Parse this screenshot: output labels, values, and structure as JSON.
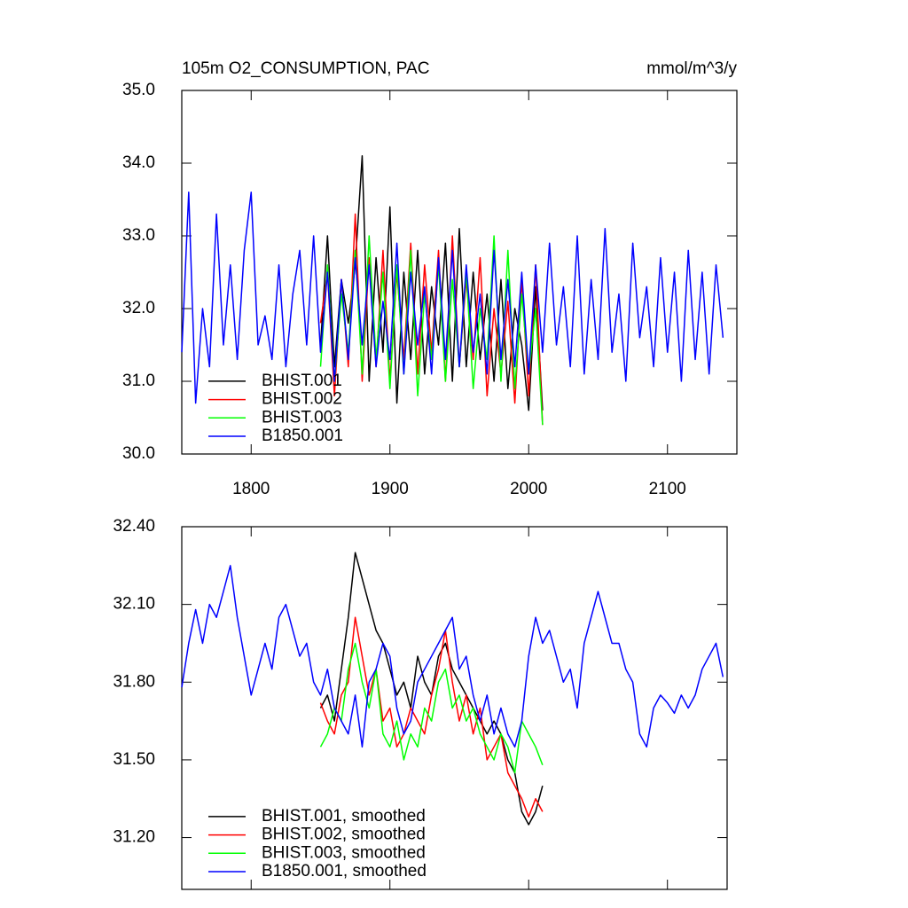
{
  "chart_data": [
    {
      "type": "line",
      "title": "105m O2_CONSUMPTION, PAC",
      "units": "mmol/m^3/y",
      "x": [
        1750,
        1755,
        1760,
        1765,
        1770,
        1775,
        1780,
        1785,
        1790,
        1795,
        1800,
        1805,
        1810,
        1815,
        1820,
        1825,
        1830,
        1835,
        1840,
        1845,
        1850,
        1855,
        1860,
        1865,
        1870,
        1875,
        1880,
        1885,
        1890,
        1895,
        1900,
        1905,
        1910,
        1915,
        1920,
        1925,
        1930,
        1935,
        1940,
        1945,
        1950,
        1955,
        1960,
        1965,
        1970,
        1975,
        1980,
        1985,
        1990,
        1995,
        2000,
        2005,
        2010,
        2015,
        2020,
        2025,
        2030,
        2035,
        2040,
        2045,
        2050,
        2055,
        2060,
        2065,
        2070,
        2075,
        2080,
        2085,
        2090,
        2095,
        2100,
        2105,
        2110,
        2115,
        2120,
        2125,
        2130,
        2135,
        2140
      ],
      "xlim": [
        1750,
        2150
      ],
      "xticks": [
        1800,
        1900,
        2000,
        2100
      ],
      "ylim": [
        30,
        35
      ],
      "yticks": [
        {
          "value": 30,
          "label": "30.0"
        },
        {
          "value": 31,
          "label": "31.0"
        },
        {
          "value": 32,
          "label": "32.0"
        },
        {
          "value": 33,
          "label": "33.0"
        },
        {
          "value": 34,
          "label": "34.0"
        },
        {
          "value": 35,
          "label": "35.0"
        }
      ],
      "legend": "lower left",
      "series": [
        {
          "name": "BHIST.001",
          "color": "#000000",
          "values": [
            null,
            null,
            null,
            null,
            null,
            null,
            null,
            null,
            null,
            null,
            null,
            null,
            null,
            null,
            null,
            null,
            null,
            null,
            null,
            null,
            31.5,
            33.0,
            31.2,
            32.4,
            31.8,
            32.6,
            34.1,
            31.0,
            32.7,
            31.4,
            33.4,
            30.7,
            32.5,
            31.3,
            32.8,
            31.1,
            32.3,
            31.5,
            32.9,
            31.0,
            33.1,
            31.2,
            32.5,
            31.3,
            32.2,
            31.0,
            32.4,
            30.9,
            32.0,
            31.5,
            30.6,
            32.3,
            30.6,
            null,
            null,
            null,
            null,
            null,
            null,
            null,
            null,
            null,
            null,
            null,
            null,
            null,
            null,
            null,
            null,
            null,
            null,
            null,
            null,
            null,
            null,
            null,
            null,
            null,
            null
          ]
        },
        {
          "name": "BHIST.002",
          "color": "#ff0000",
          "values": [
            null,
            null,
            null,
            null,
            null,
            null,
            null,
            null,
            null,
            null,
            null,
            null,
            null,
            null,
            null,
            null,
            null,
            null,
            null,
            null,
            31.8,
            32.5,
            30.8,
            32.4,
            31.2,
            33.3,
            31.0,
            32.7,
            31.2,
            32.8,
            31.0,
            32.5,
            31.3,
            32.9,
            31.1,
            32.6,
            31.4,
            32.8,
            31.0,
            33.0,
            31.2,
            32.4,
            31.3,
            32.7,
            30.8,
            32.0,
            31.1,
            32.1,
            30.7,
            32.4,
            30.8,
            32.6,
            30.4,
            null,
            null,
            null,
            null,
            null,
            null,
            null,
            null,
            null,
            null,
            null,
            null,
            null,
            null,
            null,
            null,
            null,
            null,
            null,
            null,
            null,
            null,
            null,
            null,
            null,
            null
          ]
        },
        {
          "name": "BHIST.003",
          "color": "#00ff00",
          "values": [
            null,
            null,
            null,
            null,
            null,
            null,
            null,
            null,
            null,
            null,
            null,
            null,
            null,
            null,
            null,
            null,
            null,
            null,
            null,
            null,
            31.2,
            32.6,
            31.0,
            32.2,
            31.4,
            32.8,
            31.1,
            33.0,
            31.3,
            32.5,
            30.9,
            32.6,
            31.1,
            32.8,
            30.8,
            32.2,
            31.3,
            32.6,
            31.0,
            32.4,
            31.2,
            32.5,
            30.9,
            32.0,
            31.3,
            33.0,
            31.0,
            32.8,
            30.9,
            32.2,
            31.1,
            32.0,
            30.4,
            null,
            null,
            null,
            null,
            null,
            null,
            null,
            null,
            null,
            null,
            null,
            null,
            null,
            null,
            null,
            null,
            null,
            null,
            null,
            null,
            null,
            null,
            null,
            null,
            null,
            null
          ]
        },
        {
          "name": "B1850.001",
          "color": "#0000ff",
          "values": [
            31.4,
            33.6,
            30.7,
            32.0,
            31.2,
            33.3,
            31.5,
            32.6,
            31.3,
            32.8,
            33.6,
            31.5,
            31.9,
            31.3,
            32.6,
            31.2,
            32.2,
            32.8,
            31.5,
            33.0,
            31.4,
            32.5,
            31.0,
            32.4,
            31.3,
            32.7,
            31.5,
            32.6,
            31.2,
            32.1,
            31.3,
            32.9,
            31.1,
            32.5,
            31.5,
            32.3,
            31.1,
            32.7,
            31.3,
            32.8,
            31.2,
            32.6,
            31.4,
            32.2,
            31.1,
            32.8,
            31.3,
            32.4,
            31.2,
            32.5,
            31.1,
            32.6,
            31.4,
            32.9,
            31.5,
            32.3,
            31.2,
            33.0,
            31.1,
            32.4,
            31.3,
            33.1,
            31.4,
            32.2,
            31.0,
            32.9,
            31.6,
            32.3,
            31.2,
            32.7,
            31.4,
            32.5,
            31.0,
            32.8,
            31.3,
            32.5,
            31.1,
            32.6,
            31.6
          ]
        }
      ]
    },
    {
      "type": "line",
      "x": [
        1750,
        1755,
        1760,
        1765,
        1770,
        1775,
        1780,
        1785,
        1790,
        1795,
        1800,
        1805,
        1810,
        1815,
        1820,
        1825,
        1830,
        1835,
        1840,
        1845,
        1850,
        1855,
        1860,
        1865,
        1870,
        1875,
        1880,
        1885,
        1890,
        1895,
        1900,
        1905,
        1910,
        1915,
        1920,
        1925,
        1930,
        1935,
        1940,
        1945,
        1950,
        1955,
        1960,
        1965,
        1970,
        1975,
        1980,
        1985,
        1990,
        1995,
        2000,
        2005,
        2010,
        2015,
        2020,
        2025,
        2030,
        2035,
        2040,
        2045,
        2050,
        2055,
        2060,
        2065,
        2070,
        2075,
        2080,
        2085,
        2090,
        2095,
        2100,
        2105,
        2110,
        2115,
        2120,
        2125,
        2130,
        2135,
        2140
      ],
      "xlim": [
        1750,
        2143
      ],
      "xticks": [
        1800,
        1900,
        2000,
        2100
      ],
      "ylim": [
        31.0,
        32.4
      ],
      "yticks": [
        {
          "value": 31.2,
          "label": "31.20"
        },
        {
          "value": 31.5,
          "label": "31.50"
        },
        {
          "value": 31.8,
          "label": "31.80"
        },
        {
          "value": 32.1,
          "label": "32.10"
        },
        {
          "value": 32.4,
          "label": "32.40"
        }
      ],
      "legend": "lower left",
      "series": [
        {
          "name": "BHIST.001, smoothed",
          "color": "#000000",
          "values": [
            null,
            null,
            null,
            null,
            null,
            null,
            null,
            null,
            null,
            null,
            null,
            null,
            null,
            null,
            null,
            null,
            null,
            null,
            null,
            null,
            31.7,
            31.75,
            31.65,
            31.85,
            32.05,
            32.3,
            32.2,
            32.1,
            32.0,
            31.95,
            31.85,
            31.75,
            31.8,
            31.7,
            31.9,
            31.8,
            31.75,
            31.9,
            31.95,
            31.85,
            31.8,
            31.75,
            31.7,
            31.65,
            31.6,
            31.65,
            31.6,
            31.5,
            31.45,
            31.3,
            31.25,
            31.3,
            31.4,
            null,
            null,
            null,
            null,
            null,
            null,
            null,
            null,
            null,
            null,
            null,
            null,
            null,
            null,
            null,
            null,
            null,
            null,
            null,
            null,
            null,
            null,
            null,
            null,
            null,
            null
          ]
        },
        {
          "name": "BHIST.002, smoothed",
          "color": "#ff0000",
          "values": [
            null,
            null,
            null,
            null,
            null,
            null,
            null,
            null,
            null,
            null,
            null,
            null,
            null,
            null,
            null,
            null,
            null,
            null,
            null,
            null,
            31.72,
            31.65,
            31.6,
            31.75,
            31.8,
            32.05,
            31.9,
            31.75,
            31.85,
            31.65,
            31.7,
            31.55,
            31.6,
            31.7,
            31.65,
            31.6,
            31.75,
            31.85,
            32.0,
            31.8,
            31.65,
            31.75,
            31.6,
            31.7,
            31.5,
            31.55,
            31.6,
            31.45,
            31.4,
            31.35,
            31.28,
            31.35,
            31.3,
            null,
            null,
            null,
            null,
            null,
            null,
            null,
            null,
            null,
            null,
            null,
            null,
            null,
            null,
            null,
            null,
            null,
            null,
            null,
            null,
            null,
            null,
            null,
            null,
            null,
            null
          ]
        },
        {
          "name": "BHIST.003, smoothed",
          "color": "#00ff00",
          "values": [
            null,
            null,
            null,
            null,
            null,
            null,
            null,
            null,
            null,
            null,
            null,
            null,
            null,
            null,
            null,
            null,
            null,
            null,
            null,
            null,
            31.55,
            31.6,
            31.7,
            31.65,
            31.85,
            31.95,
            31.8,
            31.7,
            31.85,
            31.6,
            31.55,
            31.65,
            31.5,
            31.6,
            31.55,
            31.7,
            31.65,
            31.8,
            31.85,
            31.7,
            31.75,
            31.65,
            31.7,
            31.6,
            31.55,
            31.5,
            31.6,
            31.55,
            31.45,
            31.65,
            31.6,
            31.55,
            31.48,
            null,
            null,
            null,
            null,
            null,
            null,
            null,
            null,
            null,
            null,
            null,
            null,
            null,
            null,
            null,
            null,
            null,
            null,
            null,
            null,
            null,
            null,
            null,
            null,
            null,
            null
          ]
        },
        {
          "name": "B1850.001, smoothed",
          "color": "#0000ff",
          "values": [
            31.78,
            31.95,
            32.08,
            31.95,
            32.1,
            32.05,
            32.15,
            32.25,
            32.05,
            31.9,
            31.75,
            31.85,
            31.95,
            31.85,
            32.05,
            32.1,
            32.0,
            31.9,
            31.95,
            31.8,
            31.75,
            31.85,
            31.7,
            31.65,
            31.6,
            31.75,
            31.55,
            31.8,
            31.85,
            31.95,
            31.9,
            31.7,
            31.6,
            31.65,
            31.8,
            31.85,
            31.9,
            31.95,
            32.0,
            32.05,
            31.85,
            31.9,
            31.75,
            31.65,
            31.75,
            31.6,
            31.7,
            31.6,
            31.55,
            31.65,
            31.9,
            32.05,
            31.95,
            32.0,
            31.9,
            31.8,
            31.85,
            31.7,
            31.95,
            32.05,
            32.15,
            32.05,
            31.95,
            31.95,
            31.85,
            31.8,
            31.6,
            31.55,
            31.7,
            31.75,
            31.72,
            31.68,
            31.75,
            31.7,
            31.75,
            31.85,
            31.9,
            31.95,
            31.82
          ]
        }
      ]
    }
  ]
}
